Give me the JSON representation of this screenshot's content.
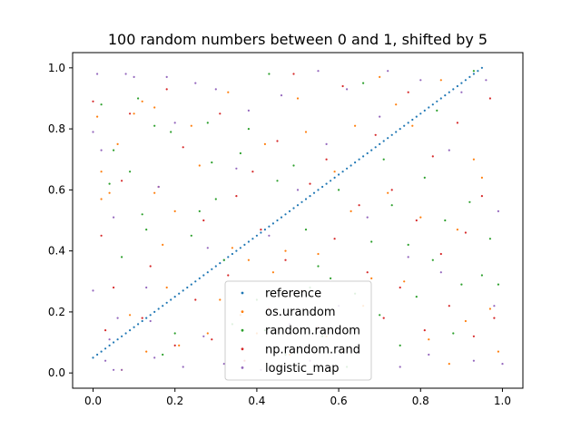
{
  "chart_data": {
    "type": "scatter",
    "title": "100 random numbers between 0 and 1, shifted by 5",
    "xlabel": "",
    "ylabel": "",
    "xlim": [
      -0.05,
      1.05
    ],
    "ylim": [
      -0.05,
      1.05
    ],
    "xticks": [
      "0.0",
      "0.2",
      "0.4",
      "0.6",
      "0.8",
      "1.0"
    ],
    "yticks": [
      "0.0",
      "0.2",
      "0.4",
      "0.6",
      "0.8",
      "1.0"
    ],
    "grid": false,
    "legend_position": "lower-center",
    "series": [
      {
        "name": "reference",
        "color": "#1f77b4",
        "kind": "diagonal",
        "points": [
          [
            0.0,
            0.05
          ],
          [
            0.01,
            0.06
          ],
          [
            0.02,
            0.07
          ],
          [
            0.03,
            0.08
          ],
          [
            0.04,
            0.09
          ],
          [
            0.05,
            0.1
          ],
          [
            0.06,
            0.11
          ],
          [
            0.07,
            0.12
          ],
          [
            0.08,
            0.13
          ],
          [
            0.09,
            0.14
          ],
          [
            0.1,
            0.15
          ],
          [
            0.11,
            0.16
          ],
          [
            0.12,
            0.17
          ],
          [
            0.13,
            0.18
          ],
          [
            0.14,
            0.19
          ],
          [
            0.15,
            0.2
          ],
          [
            0.16,
            0.21
          ],
          [
            0.17,
            0.22
          ],
          [
            0.18,
            0.23
          ],
          [
            0.19,
            0.24
          ],
          [
            0.2,
            0.25
          ],
          [
            0.21,
            0.26
          ],
          [
            0.22,
            0.27
          ],
          [
            0.23,
            0.28
          ],
          [
            0.24,
            0.29
          ],
          [
            0.25,
            0.3
          ],
          [
            0.26,
            0.31
          ],
          [
            0.27,
            0.32
          ],
          [
            0.28,
            0.33
          ],
          [
            0.29,
            0.34
          ],
          [
            0.3,
            0.35
          ],
          [
            0.31,
            0.36
          ],
          [
            0.32,
            0.37
          ],
          [
            0.33,
            0.38
          ],
          [
            0.34,
            0.39
          ],
          [
            0.35,
            0.4
          ],
          [
            0.36,
            0.41
          ],
          [
            0.37,
            0.42
          ],
          [
            0.38,
            0.43
          ],
          [
            0.39,
            0.44
          ],
          [
            0.4,
            0.45
          ],
          [
            0.41,
            0.46
          ],
          [
            0.42,
            0.47
          ],
          [
            0.43,
            0.48
          ],
          [
            0.44,
            0.49
          ],
          [
            0.45,
            0.5
          ],
          [
            0.46,
            0.51
          ],
          [
            0.47,
            0.52
          ],
          [
            0.48,
            0.53
          ],
          [
            0.49,
            0.54
          ],
          [
            0.5,
            0.55
          ],
          [
            0.51,
            0.56
          ],
          [
            0.52,
            0.57
          ],
          [
            0.53,
            0.58
          ],
          [
            0.54,
            0.59
          ],
          [
            0.55,
            0.6
          ],
          [
            0.56,
            0.61
          ],
          [
            0.57,
            0.62
          ],
          [
            0.58,
            0.63
          ],
          [
            0.59,
            0.64
          ],
          [
            0.6,
            0.65
          ],
          [
            0.61,
            0.66
          ],
          [
            0.62,
            0.67
          ],
          [
            0.63,
            0.68
          ],
          [
            0.64,
            0.69
          ],
          [
            0.65,
            0.7
          ],
          [
            0.66,
            0.71
          ],
          [
            0.67,
            0.72
          ],
          [
            0.68,
            0.73
          ],
          [
            0.69,
            0.74
          ],
          [
            0.7,
            0.75
          ],
          [
            0.71,
            0.76
          ],
          [
            0.72,
            0.77
          ],
          [
            0.73,
            0.78
          ],
          [
            0.74,
            0.79
          ],
          [
            0.75,
            0.8
          ],
          [
            0.76,
            0.81
          ],
          [
            0.77,
            0.82
          ],
          [
            0.78,
            0.83
          ],
          [
            0.79,
            0.84
          ],
          [
            0.8,
            0.85
          ],
          [
            0.81,
            0.86
          ],
          [
            0.82,
            0.87
          ],
          [
            0.83,
            0.88
          ],
          [
            0.84,
            0.89
          ],
          [
            0.85,
            0.9
          ],
          [
            0.86,
            0.91
          ],
          [
            0.87,
            0.92
          ],
          [
            0.88,
            0.93
          ],
          [
            0.89,
            0.94
          ],
          [
            0.9,
            0.95
          ],
          [
            0.91,
            0.96
          ],
          [
            0.92,
            0.97
          ],
          [
            0.93,
            0.98
          ],
          [
            0.94,
            0.99
          ],
          [
            0.95,
            1.0
          ]
        ]
      },
      {
        "name": "os.urandom",
        "color": "#ff7f0e",
        "points": [
          [
            0.01,
            0.84
          ],
          [
            0.02,
            0.66
          ],
          [
            0.02,
            0.57
          ],
          [
            0.04,
            0.59
          ],
          [
            0.06,
            0.75
          ],
          [
            0.07,
            0.01
          ],
          [
            0.09,
            0.19
          ],
          [
            0.1,
            0.85
          ],
          [
            0.12,
            0.89
          ],
          [
            0.13,
            0.07
          ],
          [
            0.15,
            0.59
          ],
          [
            0.15,
            0.87
          ],
          [
            0.17,
            0.42
          ],
          [
            0.18,
            0.28
          ],
          [
            0.2,
            0.53
          ],
          [
            0.21,
            0.09
          ],
          [
            0.24,
            0.81
          ],
          [
            0.26,
            0.68
          ],
          [
            0.28,
            0.13
          ],
          [
            0.31,
            0.24
          ],
          [
            0.33,
            0.92
          ],
          [
            0.34,
            0.41
          ],
          [
            0.36,
            0.19
          ],
          [
            0.38,
            0.37
          ],
          [
            0.4,
            0.13
          ],
          [
            0.42,
            0.75
          ],
          [
            0.44,
            0.33
          ],
          [
            0.47,
            0.4
          ],
          [
            0.48,
            0.06
          ],
          [
            0.5,
            0.9
          ],
          [
            0.52,
            0.79
          ],
          [
            0.55,
            0.39
          ],
          [
            0.57,
            0.12
          ],
          [
            0.59,
            0.66
          ],
          [
            0.61,
            0.07
          ],
          [
            0.63,
            0.53
          ],
          [
            0.64,
            0.81
          ],
          [
            0.66,
            0.22
          ],
          [
            0.68,
            0.31
          ],
          [
            0.7,
            0.97
          ],
          [
            0.72,
            0.59
          ],
          [
            0.74,
            0.88
          ],
          [
            0.76,
            0.3
          ],
          [
            0.78,
            0.81
          ],
          [
            0.8,
            0.51
          ],
          [
            0.82,
            0.11
          ],
          [
            0.85,
            0.96
          ],
          [
            0.87,
            0.03
          ],
          [
            0.89,
            0.47
          ],
          [
            0.91,
            0.17
          ],
          [
            0.93,
            0.7
          ],
          [
            0.95,
            0.64
          ],
          [
            0.97,
            0.21
          ],
          [
            0.99,
            0.07
          ]
        ]
      },
      {
        "name": "random.random",
        "color": "#2ca02c",
        "points": [
          [
            0.02,
            0.88
          ],
          [
            0.04,
            0.62
          ],
          [
            0.05,
            0.73
          ],
          [
            0.07,
            0.38
          ],
          [
            0.09,
            0.66
          ],
          [
            0.11,
            0.9
          ],
          [
            0.12,
            0.52
          ],
          [
            0.13,
            0.47
          ],
          [
            0.15,
            0.81
          ],
          [
            0.17,
            0.06
          ],
          [
            0.19,
            0.79
          ],
          [
            0.2,
            0.13
          ],
          [
            0.24,
            0.45
          ],
          [
            0.26,
            0.53
          ],
          [
            0.28,
            0.82
          ],
          [
            0.29,
            0.69
          ],
          [
            0.3,
            0.57
          ],
          [
            0.32,
            0.37
          ],
          [
            0.34,
            0.16
          ],
          [
            0.36,
            0.72
          ],
          [
            0.38,
            0.8
          ],
          [
            0.4,
            0.24
          ],
          [
            0.42,
            0.14
          ],
          [
            0.43,
            0.98
          ],
          [
            0.45,
            0.63
          ],
          [
            0.47,
            0.06
          ],
          [
            0.49,
            0.68
          ],
          [
            0.52,
            0.47
          ],
          [
            0.53,
            0.28
          ],
          [
            0.55,
            0.35
          ],
          [
            0.56,
            0.12
          ],
          [
            0.58,
            0.31
          ],
          [
            0.6,
            0.6
          ],
          [
            0.62,
            0.02
          ],
          [
            0.64,
            0.26
          ],
          [
            0.66,
            0.95
          ],
          [
            0.68,
            0.43
          ],
          [
            0.7,
            0.19
          ],
          [
            0.71,
            0.7
          ],
          [
            0.73,
            0.55
          ],
          [
            0.75,
            0.09
          ],
          [
            0.77,
            0.42
          ],
          [
            0.79,
            0.25
          ],
          [
            0.81,
            0.64
          ],
          [
            0.83,
            0.37
          ],
          [
            0.84,
            0.86
          ],
          [
            0.86,
            0.5
          ],
          [
            0.88,
            0.13
          ],
          [
            0.9,
            0.29
          ],
          [
            0.92,
            0.56
          ],
          [
            0.93,
            0.99
          ],
          [
            0.95,
            0.32
          ],
          [
            0.97,
            0.44
          ],
          [
            0.99,
            0.29
          ]
        ]
      },
      {
        "name": "np.random.rand",
        "color": "#d62728",
        "points": [
          [
            0.0,
            0.89
          ],
          [
            0.02,
            0.45
          ],
          [
            0.03,
            0.14
          ],
          [
            0.05,
            0.28
          ],
          [
            0.07,
            0.63
          ],
          [
            0.09,
            0.85
          ],
          [
            0.12,
            0.18
          ],
          [
            0.14,
            0.35
          ],
          [
            0.16,
            0.61
          ],
          [
            0.18,
            0.93
          ],
          [
            0.2,
            0.09
          ],
          [
            0.22,
            0.74
          ],
          [
            0.25,
            0.24
          ],
          [
            0.27,
            0.5
          ],
          [
            0.29,
            0.11
          ],
          [
            0.31,
            0.85
          ],
          [
            0.33,
            0.32
          ],
          [
            0.35,
            0.58
          ],
          [
            0.37,
            0.04
          ],
          [
            0.39,
            0.66
          ],
          [
            0.41,
            0.47
          ],
          [
            0.43,
            0.21
          ],
          [
            0.45,
            0.76
          ],
          [
            0.47,
            0.37
          ],
          [
            0.49,
            0.98
          ],
          [
            0.51,
            0.27
          ],
          [
            0.53,
            0.62
          ],
          [
            0.55,
            0.15
          ],
          [
            0.57,
            0.7
          ],
          [
            0.59,
            0.44
          ],
          [
            0.61,
            0.94
          ],
          [
            0.63,
            0.08
          ],
          [
            0.65,
            0.55
          ],
          [
            0.67,
            0.33
          ],
          [
            0.69,
            0.78
          ],
          [
            0.71,
            0.18
          ],
          [
            0.73,
            0.6
          ],
          [
            0.75,
            0.28
          ],
          [
            0.77,
            0.92
          ],
          [
            0.79,
            0.5
          ],
          [
            0.81,
            0.14
          ],
          [
            0.83,
            0.71
          ],
          [
            0.85,
            0.39
          ],
          [
            0.87,
            0.22
          ],
          [
            0.89,
            0.82
          ],
          [
            0.91,
            0.46
          ],
          [
            0.93,
            0.12
          ],
          [
            0.95,
            0.58
          ],
          [
            0.97,
            0.9
          ],
          [
            0.98,
            0.18
          ]
        ]
      },
      {
        "name": "logistic_map",
        "color": "#9467bd",
        "points": [
          [
            0.0,
            0.79
          ],
          [
            0.0,
            0.27
          ],
          [
            0.01,
            0.98
          ],
          [
            0.02,
            0.73
          ],
          [
            0.03,
            0.04
          ],
          [
            0.04,
            0.11
          ],
          [
            0.05,
            0.01
          ],
          [
            0.05,
            0.51
          ],
          [
            0.06,
            0.18
          ],
          [
            0.07,
            0.01
          ],
          [
            0.08,
            0.98
          ],
          [
            0.1,
            0.97
          ],
          [
            0.13,
            0.28
          ],
          [
            0.14,
            0.17
          ],
          [
            0.15,
            0.05
          ],
          [
            0.16,
            0.61
          ],
          [
            0.18,
            0.97
          ],
          [
            0.2,
            0.82
          ],
          [
            0.22,
            0.02
          ],
          [
            0.25,
            0.95
          ],
          [
            0.27,
            0.12
          ],
          [
            0.28,
            0.41
          ],
          [
            0.3,
            0.93
          ],
          [
            0.32,
            0.03
          ],
          [
            0.35,
            0.67
          ],
          [
            0.38,
            0.86
          ],
          [
            0.41,
            0.01
          ],
          [
            0.43,
            0.45
          ],
          [
            0.46,
            0.91
          ],
          [
            0.48,
            0.16
          ],
          [
            0.5,
            0.6
          ],
          [
            0.53,
            0.04
          ],
          [
            0.55,
            0.99
          ],
          [
            0.57,
            0.75
          ],
          [
            0.6,
            0.22
          ],
          [
            0.62,
            0.93
          ],
          [
            0.65,
            0.07
          ],
          [
            0.67,
            0.51
          ],
          [
            0.7,
            0.84
          ],
          [
            0.72,
            0.99
          ],
          [
            0.75,
            0.02
          ],
          [
            0.77,
            0.38
          ],
          [
            0.8,
            0.96
          ],
          [
            0.82,
            0.06
          ],
          [
            0.85,
            0.33
          ],
          [
            0.87,
            0.73
          ],
          [
            0.9,
            0.92
          ],
          [
            0.93,
            0.04
          ],
          [
            0.96,
            0.96
          ],
          [
            0.98,
            0.22
          ],
          [
            0.99,
            0.53
          ],
          [
            1.0,
            0.03
          ]
        ]
      }
    ]
  }
}
